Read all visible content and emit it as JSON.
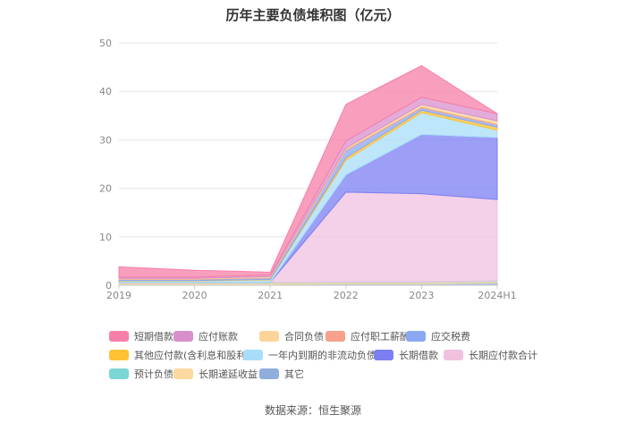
{
  "chart_data": {
    "type": "area",
    "stacked": true,
    "title": "历年主要负债堆积图（亿元）",
    "x": [
      "2019",
      "2020",
      "2021",
      "2022",
      "2023",
      "2024H1"
    ],
    "ylim": [
      0,
      50
    ],
    "yticks": [
      0,
      10,
      20,
      30,
      40,
      50
    ],
    "grid": true,
    "legend_position": "bottom",
    "series": [
      {
        "name": "短期借款",
        "color": "#f77fa8",
        "values": [
          2.1,
          1.4,
          0.6,
          7.5,
          6.5,
          0.0
        ]
      },
      {
        "name": "应付账款",
        "color": "#d98fcc",
        "values": [
          0.3,
          0.3,
          0.3,
          1.5,
          1.5,
          1.5
        ]
      },
      {
        "name": "合同负债",
        "color": "#fcd49a",
        "values": [
          0.1,
          0.1,
          0.2,
          0.3,
          0.5,
          0.6
        ]
      },
      {
        "name": "应付职工薪酬",
        "color": "#f7a08c",
        "values": [
          0.1,
          0.1,
          0.1,
          0.2,
          0.2,
          0.2
        ]
      },
      {
        "name": "应交税费",
        "color": "#8aa8f2",
        "values": [
          0.2,
          0.2,
          0.3,
          1.5,
          0.5,
          0.5
        ]
      },
      {
        "name": "其他应付款(含利息和股利)",
        "color": "#ffc233",
        "values": [
          0.1,
          0.1,
          0.1,
          0.5,
          0.5,
          0.6
        ]
      },
      {
        "name": "一年内到期的非流动负债",
        "color": "#a8ddfa",
        "values": [
          0.3,
          0.3,
          0.5,
          3.0,
          4.5,
          1.5
        ]
      },
      {
        "name": "长期借款",
        "color": "#7b7ff2",
        "values": [
          0.0,
          0.0,
          0.0,
          3.6,
          12.2,
          12.8
        ]
      },
      {
        "name": "长期应付款合计",
        "color": "#f0c2e0",
        "values": [
          0.0,
          0.0,
          0.0,
          18.5,
          18.2,
          16.8
        ]
      },
      {
        "name": "预计负债",
        "color": "#7dd6d6",
        "values": [
          0.1,
          0.1,
          0.1,
          0.1,
          0.1,
          0.1
        ]
      },
      {
        "name": "长期递延收益",
        "color": "#fcd9a0",
        "values": [
          0.3,
          0.3,
          0.3,
          0.3,
          0.3,
          0.3
        ]
      },
      {
        "name": "其它",
        "color": "#8faedb",
        "values": [
          0.2,
          0.2,
          0.2,
          0.3,
          0.3,
          0.5
        ]
      }
    ]
  },
  "source": "数据来源：恒生聚源"
}
